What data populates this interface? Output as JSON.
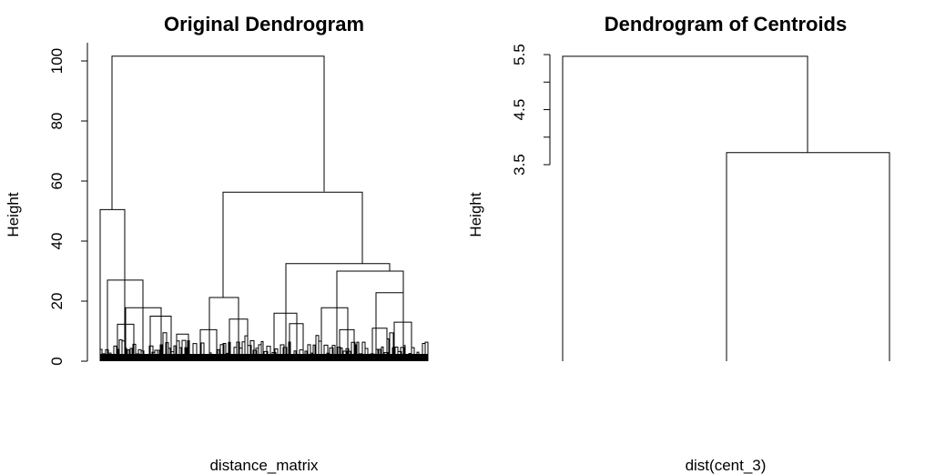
{
  "chart_data": [
    {
      "type": "dendrogram",
      "title": "Original Dendrogram",
      "xlabel": "distance_matrix",
      "ylabel": "Height",
      "ylim": [
        0,
        105
      ],
      "yticks": [
        0,
        20,
        40,
        60,
        80,
        100
      ],
      "ytick_labels": [
        "0",
        "20",
        "40",
        "60",
        "80",
        "100"
      ],
      "merges": [
        {
          "x1": 110,
          "x2": 137,
          "y1": 0,
          "y2": 0,
          "height": 50.5
        },
        {
          "x1": 123,
          "x2": 356,
          "y1": 50.5,
          "y2": 56.5,
          "height": 101.6
        },
        {
          "x1": 118,
          "x2": 157,
          "y1": 0,
          "y2": 0,
          "height": 27
        },
        {
          "x1": 138,
          "x2": 177,
          "y1": 0,
          "y2": 0,
          "height": 17.8
        },
        {
          "x1": 165,
          "x2": 188,
          "y1": 0,
          "y2": 0,
          "height": 15
        },
        {
          "x1": 129,
          "x2": 147,
          "y1": 0,
          "y2": 0,
          "height": 12.3
        },
        {
          "x1": 245,
          "x2": 398,
          "y1": 21.2,
          "y2": 32.5,
          "height": 56.3
        },
        {
          "x1": 230,
          "x2": 262,
          "y1": 0,
          "y2": 0,
          "height": 21.2
        },
        {
          "x1": 220,
          "x2": 238,
          "y1": 0,
          "y2": 0,
          "height": 10.5
        },
        {
          "x1": 252,
          "x2": 272,
          "y1": 0,
          "y2": 0,
          "height": 14
        },
        {
          "x1": 314,
          "x2": 428,
          "y1": 0,
          "y2": 30,
          "height": 32.5
        },
        {
          "x1": 301,
          "x2": 326,
          "y1": 0,
          "y2": 0,
          "height": 16
        },
        {
          "x1": 370,
          "x2": 443,
          "y1": 0,
          "y2": 0,
          "height": 30
        },
        {
          "x1": 353,
          "x2": 382,
          "y1": 0,
          "y2": 0,
          "height": 17.8
        },
        {
          "x1": 413,
          "x2": 443,
          "y1": 0,
          "y2": 0,
          "height": 22.8
        },
        {
          "x1": 433,
          "x2": 452,
          "y1": 0,
          "y2": 0,
          "height": 13
        },
        {
          "x1": 409,
          "x2": 425,
          "y1": 0,
          "y2": 0,
          "height": 11
        },
        {
          "x1": 373,
          "x2": 389,
          "y1": 0,
          "y2": 0,
          "height": 10.5
        },
        {
          "x1": 318,
          "x2": 333,
          "y1": 0,
          "y2": 0,
          "height": 12.5
        },
        {
          "x1": 194,
          "x2": 207,
          "y1": 0,
          "y2": 0,
          "height": 9
        }
      ]
    },
    {
      "type": "dendrogram",
      "title": "Dendrogram of Centroids",
      "xlabel": "dist(cent_3)",
      "ylabel": "Height",
      "ylim": [
        3.5,
        5.5
      ],
      "yticks": [
        3.5,
        4.0,
        4.5,
        5.0,
        5.5
      ],
      "ytick_labels": [
        "3.5",
        "",
        "4.5",
        "",
        "5.5"
      ],
      "leaves": 3,
      "merges": [
        {
          "x1": 798,
          "x2": 977,
          "y1": -1,
          "y2": -1,
          "height": 3.72
        },
        {
          "x1": 618,
          "x2": 887,
          "y1": -1,
          "y2": 3.72,
          "height": 5.47
        }
      ]
    }
  ]
}
